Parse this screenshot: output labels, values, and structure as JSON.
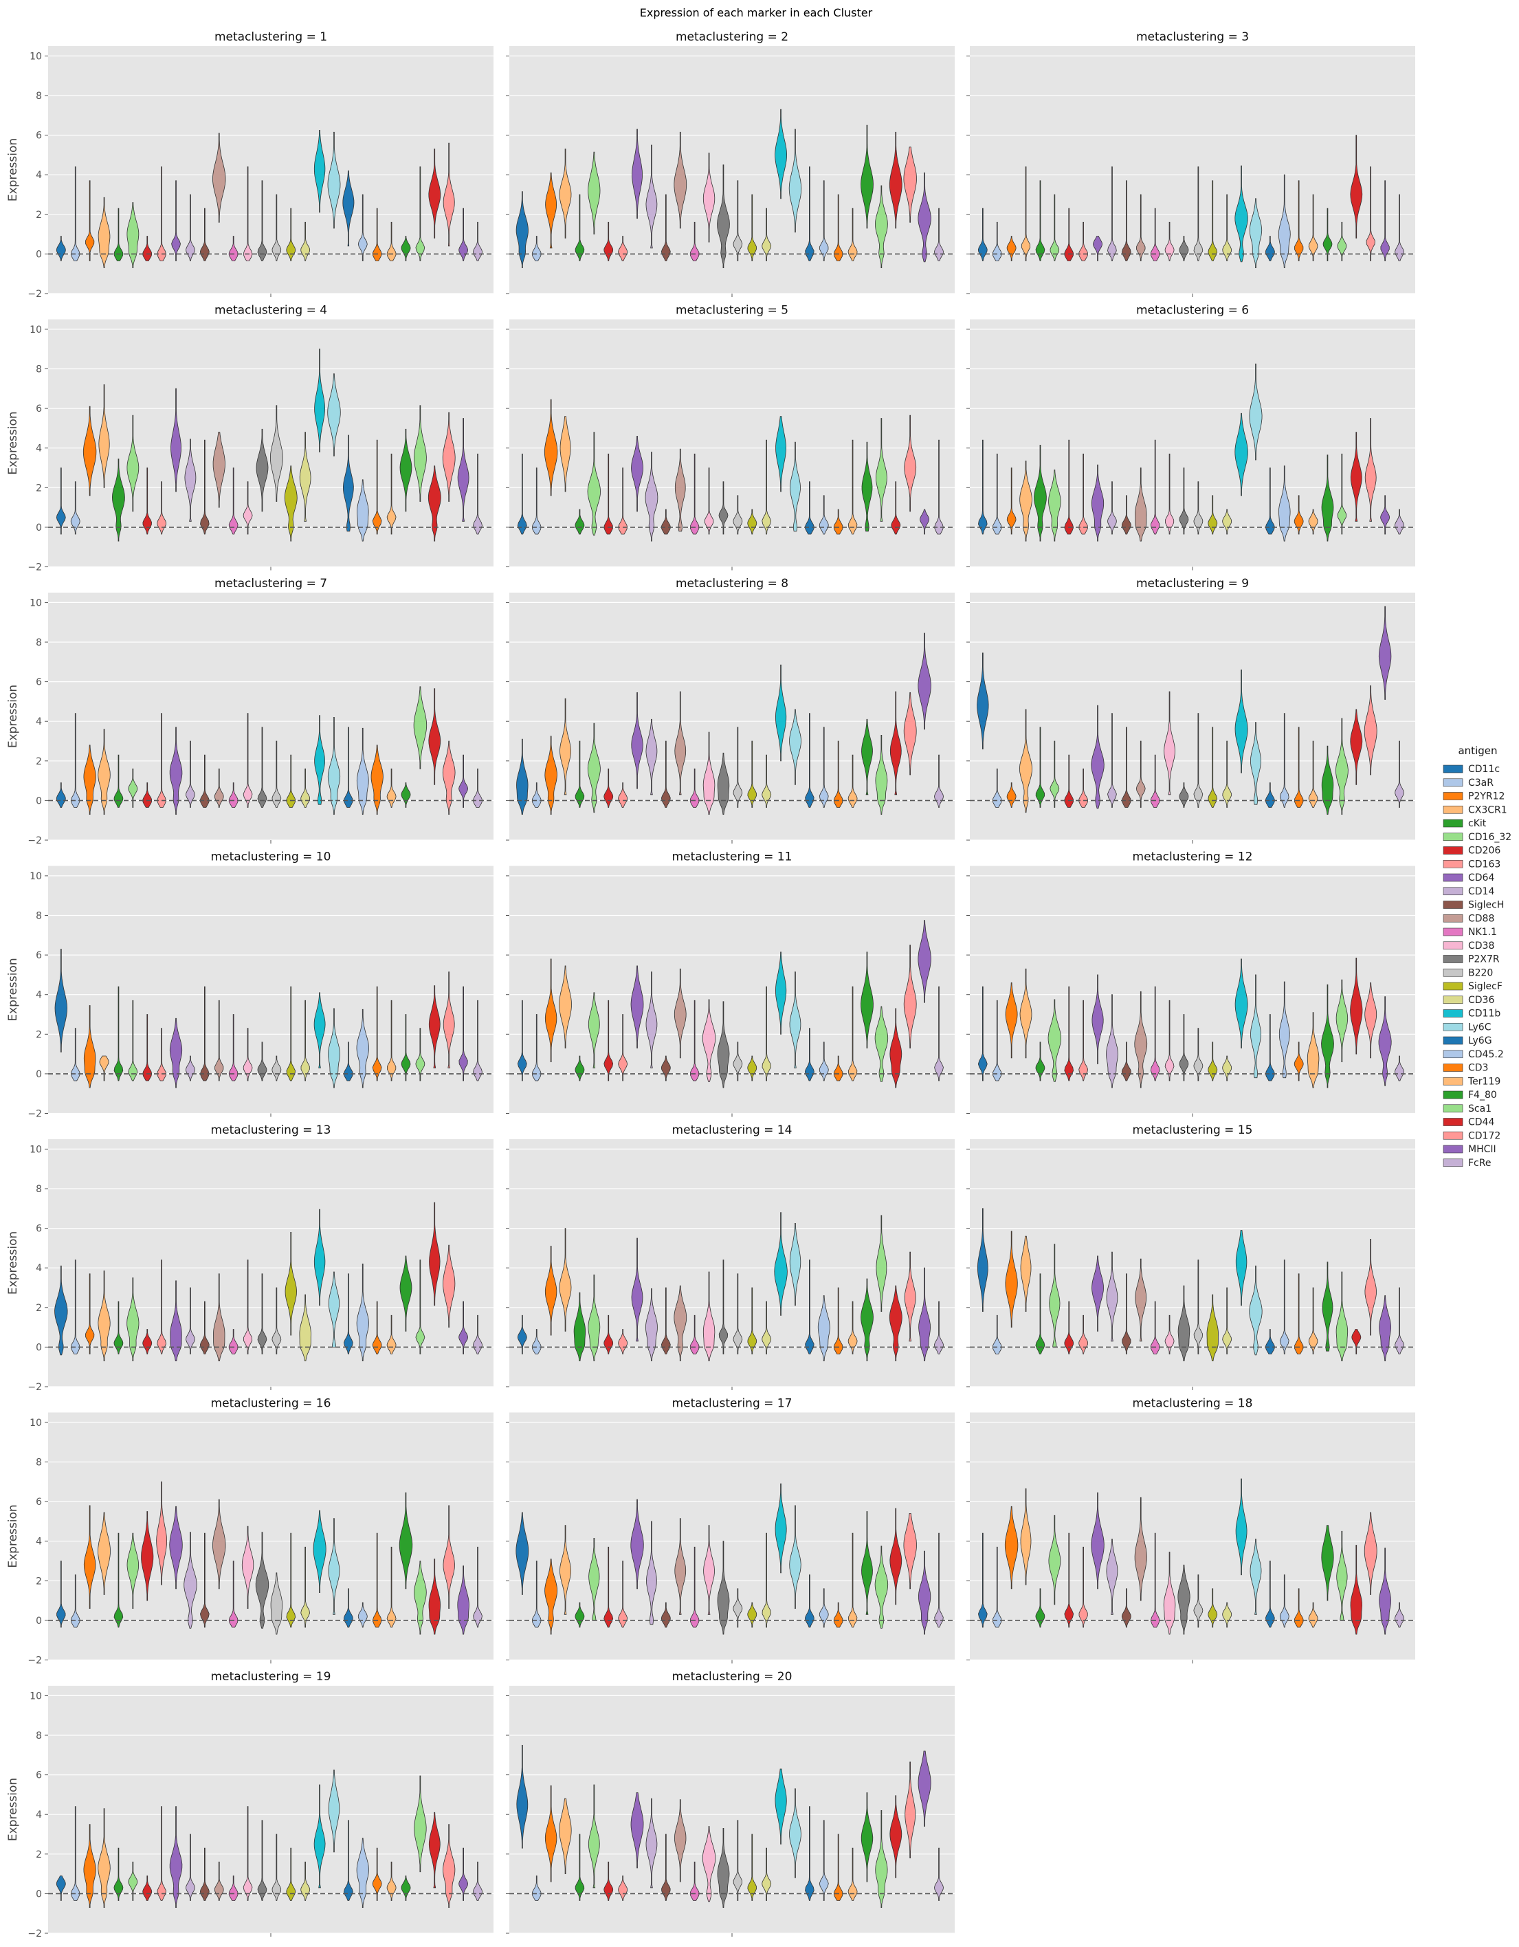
{
  "title": "Expression of each marker in each Cluster",
  "ylabel": "Expression",
  "facet_label_template": "metaclustering = {n}",
  "legend": {
    "title": "antigen",
    "placement": "right",
    "items": [
      {
        "name": "CD11c",
        "color": "#1f77b4"
      },
      {
        "name": "C3aR",
        "color": "#aec7e8"
      },
      {
        "name": "P2YR12",
        "color": "#ff7f0e"
      },
      {
        "name": "CX3CR1",
        "color": "#ffbb78"
      },
      {
        "name": "cKit",
        "color": "#2ca02c"
      },
      {
        "name": "CD16_32",
        "color": "#98df8a"
      },
      {
        "name": "CD206",
        "color": "#d62728"
      },
      {
        "name": "CD163",
        "color": "#ff9896"
      },
      {
        "name": "CD64",
        "color": "#9467bd"
      },
      {
        "name": "CD14",
        "color": "#c5b0d5"
      },
      {
        "name": "SiglecH",
        "color": "#8c564b"
      },
      {
        "name": "CD88",
        "color": "#c49c94"
      },
      {
        "name": "NK1.1",
        "color": "#e377c2"
      },
      {
        "name": "CD38",
        "color": "#f7b6d2"
      },
      {
        "name": "P2X7R",
        "color": "#7f7f7f"
      },
      {
        "name": "B220",
        "color": "#c7c7c7"
      },
      {
        "name": "SiglecF",
        "color": "#bcbd22"
      },
      {
        "name": "CD36",
        "color": "#dbdb8d"
      },
      {
        "name": "CD11b",
        "color": "#17becf"
      },
      {
        "name": "Ly6C",
        "color": "#9edae5"
      },
      {
        "name": "Ly6G",
        "color": "#1f77b4"
      },
      {
        "name": "CD45.2",
        "color": "#aec7e8"
      },
      {
        "name": "CD3",
        "color": "#ff7f0e"
      },
      {
        "name": "Ter119",
        "color": "#ffbb78"
      },
      {
        "name": "F4_80",
        "color": "#2ca02c"
      },
      {
        "name": "Sca1",
        "color": "#98df8a"
      },
      {
        "name": "CD44",
        "color": "#d62728"
      },
      {
        "name": "CD172",
        "color": "#ff9896"
      },
      {
        "name": "MHCII",
        "color": "#9467bd"
      },
      {
        "name": "FcRe",
        "color": "#c5b0d5"
      }
    ]
  },
  "chart_data": {
    "type": "violin",
    "title": "Expression of each marker in each Cluster",
    "ylabel": "Expression",
    "xlabel": "",
    "ylim": [
      -2,
      10.5
    ],
    "yticks": [
      -2,
      0,
      2,
      4,
      6,
      8,
      10
    ],
    "reference_line_y": 0,
    "grid": true,
    "legend_placement": "right",
    "facet_columns": 3,
    "markers": [
      "CD11c",
      "C3aR",
      "P2YR12",
      "CX3CR1",
      "cKit",
      "CD16_32",
      "CD206",
      "CD163",
      "CD64",
      "CD14",
      "SiglecH",
      "CD88",
      "NK1.1",
      "CD38",
      "P2X7R",
      "B220",
      "SiglecF",
      "CD36",
      "CD11b",
      "Ly6C",
      "Ly6G",
      "CD45.2",
      "CD3",
      "Ter119",
      "F4_80",
      "Sca1",
      "CD44",
      "CD172",
      "MHCII",
      "FcRe"
    ],
    "series_description": "per panel: approximate median expression of each marker, in marker order",
    "panels": [
      {
        "metaclustering": 1,
        "medians": [
          0.2,
          0,
          0.6,
          0.9,
          0,
          1.0,
          0,
          0,
          0.5,
          0.2,
          0.1,
          3.8,
          0,
          0,
          0.1,
          0.2,
          0.2,
          0.2,
          4.3,
          3.5,
          2.6,
          0.5,
          0,
          0,
          0.3,
          0.3,
          3.0,
          2.6,
          0.2,
          0.1
        ]
      },
      {
        "metaclustering": 2,
        "medians": [
          1.2,
          0,
          2.5,
          3.0,
          0.2,
          3.2,
          0.2,
          0.1,
          4.0,
          2.5,
          0.1,
          3.5,
          0,
          2.8,
          1.5,
          0.5,
          0.3,
          0.4,
          5.0,
          3.3,
          0.1,
          0.3,
          0,
          0.1,
          3.5,
          1.5,
          3.5,
          3.8,
          1.8,
          0.1
        ]
      },
      {
        "metaclustering": 3,
        "medians": [
          0.2,
          0,
          0.3,
          0.4,
          0.2,
          0.2,
          0,
          0,
          0.5,
          0.2,
          0.1,
          0.3,
          0,
          0.2,
          0.2,
          0.2,
          0.1,
          0.2,
          1.8,
          1.2,
          0.1,
          1.0,
          0.3,
          0.4,
          0.5,
          0.4,
          3.0,
          0.6,
          0.3,
          0.1
        ]
      },
      {
        "metaclustering": 4,
        "medians": [
          0.5,
          0.3,
          3.8,
          4.2,
          1.5,
          3.0,
          0.2,
          0.2,
          4.0,
          2.5,
          0.2,
          3.2,
          0.1,
          0.6,
          3.0,
          3.5,
          1.5,
          2.5,
          6.0,
          5.8,
          2.0,
          0.8,
          0.3,
          0.5,
          3.0,
          3.5,
          1.5,
          3.5,
          2.5,
          0.1
        ]
      },
      {
        "metaclustering": 5,
        "medians": [
          0.1,
          0,
          3.8,
          4.0,
          0.1,
          1.8,
          0,
          0,
          3.0,
          1.5,
          0,
          2.0,
          0,
          0.3,
          0.6,
          0.3,
          0.2,
          0.3,
          4.0,
          2.0,
          0,
          0.1,
          0,
          0.1,
          2.0,
          2.5,
          0.1,
          3.0,
          0.4,
          0
        ]
      },
      {
        "metaclustering": 6,
        "medians": [
          0.2,
          0,
          0.4,
          1.4,
          1.5,
          1.3,
          0,
          0,
          1.2,
          0.3,
          0.1,
          0.7,
          0.1,
          0.3,
          0.4,
          0.3,
          0.2,
          0.3,
          3.8,
          5.6,
          0,
          0.8,
          0.3,
          0.3,
          1.0,
          0.6,
          2.5,
          2.5,
          0.5,
          0.1
        ]
      },
      {
        "metaclustering": 7,
        "medians": [
          0.1,
          0,
          1.2,
          1.3,
          0.1,
          0.6,
          0,
          0,
          1.4,
          0.3,
          0,
          0.2,
          0,
          0.3,
          0.1,
          0.1,
          0,
          0.1,
          2.0,
          1.2,
          0,
          1.0,
          1.2,
          0.2,
          0.3,
          3.8,
          3.0,
          1.4,
          0.6,
          0
        ]
      },
      {
        "metaclustering": 8,
        "medians": [
          0.8,
          0,
          1.3,
          2.5,
          0.2,
          1.6,
          0.2,
          0.1,
          2.8,
          2.5,
          0.1,
          2.5,
          0,
          0.8,
          0.8,
          0.4,
          0.3,
          0.3,
          4.2,
          3.0,
          0.1,
          0.2,
          0,
          0.1,
          2.5,
          1.0,
          2.5,
          3.5,
          5.8,
          0.2
        ]
      },
      {
        "metaclustering": 9,
        "medians": [
          4.8,
          0,
          0.2,
          1.6,
          0.3,
          0.6,
          0,
          0,
          1.8,
          0.3,
          0,
          0.6,
          0,
          2.5,
          0.2,
          0.3,
          0.1,
          0.3,
          3.6,
          2.0,
          0,
          0.2,
          0,
          0.1,
          0.8,
          1.5,
          3.0,
          3.5,
          7.3,
          0.4
        ]
      },
      {
        "metaclustering": 10,
        "medians": [
          3.3,
          0,
          0.8,
          0.6,
          0.2,
          0.1,
          0,
          0,
          1.2,
          0.2,
          0,
          0.3,
          0,
          0.3,
          0.2,
          0.2,
          0.1,
          0.3,
          2.5,
          1.0,
          0,
          1.3,
          0.3,
          0.3,
          0.5,
          0.5,
          2.5,
          2.5,
          0.6,
          0.1
        ]
      },
      {
        "metaclustering": 11,
        "medians": [
          0.5,
          0,
          2.8,
          3.5,
          0.2,
          2.5,
          0.5,
          0.5,
          3.5,
          2.5,
          0.3,
          3.0,
          0,
          1.8,
          1.0,
          0.5,
          0.3,
          0.4,
          4.2,
          2.5,
          0.1,
          0.2,
          0,
          0.1,
          3.5,
          1.8,
          1.0,
          3.5,
          5.8,
          0.3
        ]
      },
      {
        "metaclustering": 12,
        "medians": [
          0.5,
          0,
          3.0,
          3.0,
          0.3,
          1.8,
          0.2,
          0.2,
          2.7,
          1.0,
          0.1,
          1.5,
          0.2,
          0.4,
          0.5,
          0.4,
          0.2,
          0.3,
          3.5,
          2.0,
          0,
          2.0,
          0.5,
          0.8,
          1.5,
          2.8,
          3.2,
          3.0,
          1.6,
          0.1
        ]
      },
      {
        "metaclustering": 13,
        "medians": [
          1.8,
          0,
          0.6,
          1.2,
          0.2,
          1.2,
          0.2,
          0.2,
          0.7,
          0.4,
          0.1,
          0.7,
          0,
          0.4,
          0.4,
          0.4,
          2.8,
          0.7,
          4.3,
          2.2,
          0.2,
          1.2,
          0.1,
          0.1,
          3.0,
          0.5,
          4.3,
          3.2,
          0.5,
          0.1
        ]
      },
      {
        "metaclustering": 14,
        "medians": [
          0.5,
          0,
          2.8,
          3.0,
          0.8,
          1.0,
          0.2,
          0.2,
          2.5,
          1.0,
          0.1,
          1.5,
          0,
          0.8,
          0.6,
          0.4,
          0.3,
          0.4,
          3.8,
          4.3,
          0.1,
          1.0,
          0,
          0.3,
          1.5,
          4.0,
          1.5,
          2.5,
          1.0,
          0.1
        ]
      },
      {
        "metaclustering": 15,
        "medians": [
          4.0,
          0,
          3.2,
          4.0,
          0.1,
          2.2,
          0.2,
          0.2,
          3.0,
          2.5,
          0.3,
          2.5,
          0,
          0.3,
          0.8,
          0.6,
          0.7,
          0.4,
          4.3,
          1.8,
          0,
          0.3,
          0,
          0.3,
          2.0,
          0.8,
          0.5,
          2.8,
          1.0,
          0.1
        ]
      },
      {
        "metaclustering": 16,
        "medians": [
          0.3,
          0,
          2.8,
          3.5,
          0.2,
          2.8,
          3.2,
          4.0,
          3.8,
          1.8,
          0.3,
          3.8,
          0,
          2.8,
          1.8,
          0.8,
          0.2,
          0.4,
          3.6,
          2.5,
          0.1,
          0.2,
          0,
          0.1,
          3.8,
          1.4,
          0.8,
          2.8,
          0.8,
          0.2
        ]
      },
      {
        "metaclustering": 17,
        "medians": [
          3.5,
          0,
          1.5,
          2.5,
          0.2,
          2.2,
          0.1,
          0.1,
          3.8,
          2.0,
          0.1,
          2.5,
          0,
          2.5,
          1.0,
          0.6,
          0.3,
          0.4,
          4.6,
          2.8,
          0.1,
          0.3,
          0,
          0.1,
          2.5,
          1.8,
          3.0,
          3.8,
          1.2,
          0.1
        ]
      },
      {
        "metaclustering": 18,
        "medians": [
          0.3,
          0,
          3.8,
          4.0,
          0.2,
          3.0,
          0.3,
          0.3,
          3.8,
          2.5,
          0.2,
          3.2,
          0,
          0.8,
          1.2,
          0.5,
          0.3,
          0.3,
          4.5,
          2.5,
          0.1,
          0.2,
          0,
          0.1,
          3.2,
          2.2,
          0.8,
          3.5,
          1.0,
          0.1
        ]
      },
      {
        "metaclustering": 19,
        "medians": [
          0.5,
          0,
          1.2,
          1.3,
          0.3,
          0.6,
          0.1,
          0.1,
          1.4,
          0.3,
          0.1,
          0.2,
          0,
          0.3,
          0.2,
          0.2,
          0.1,
          0.2,
          2.5,
          4.3,
          0.1,
          1.2,
          0.5,
          0.3,
          0.3,
          3.3,
          2.5,
          1.2,
          0.5,
          0.1
        ]
      },
      {
        "metaclustering": 20,
        "medians": [
          4.5,
          0,
          2.8,
          3.2,
          0.3,
          2.5,
          0.2,
          0.2,
          3.5,
          2.5,
          0.2,
          2.8,
          0,
          1.8,
          1.0,
          0.6,
          0.3,
          0.5,
          4.7,
          3.0,
          0.2,
          0.5,
          0,
          0.1,
          2.8,
          1.2,
          3.0,
          4.0,
          5.6,
          0.3
        ]
      }
    ]
  }
}
